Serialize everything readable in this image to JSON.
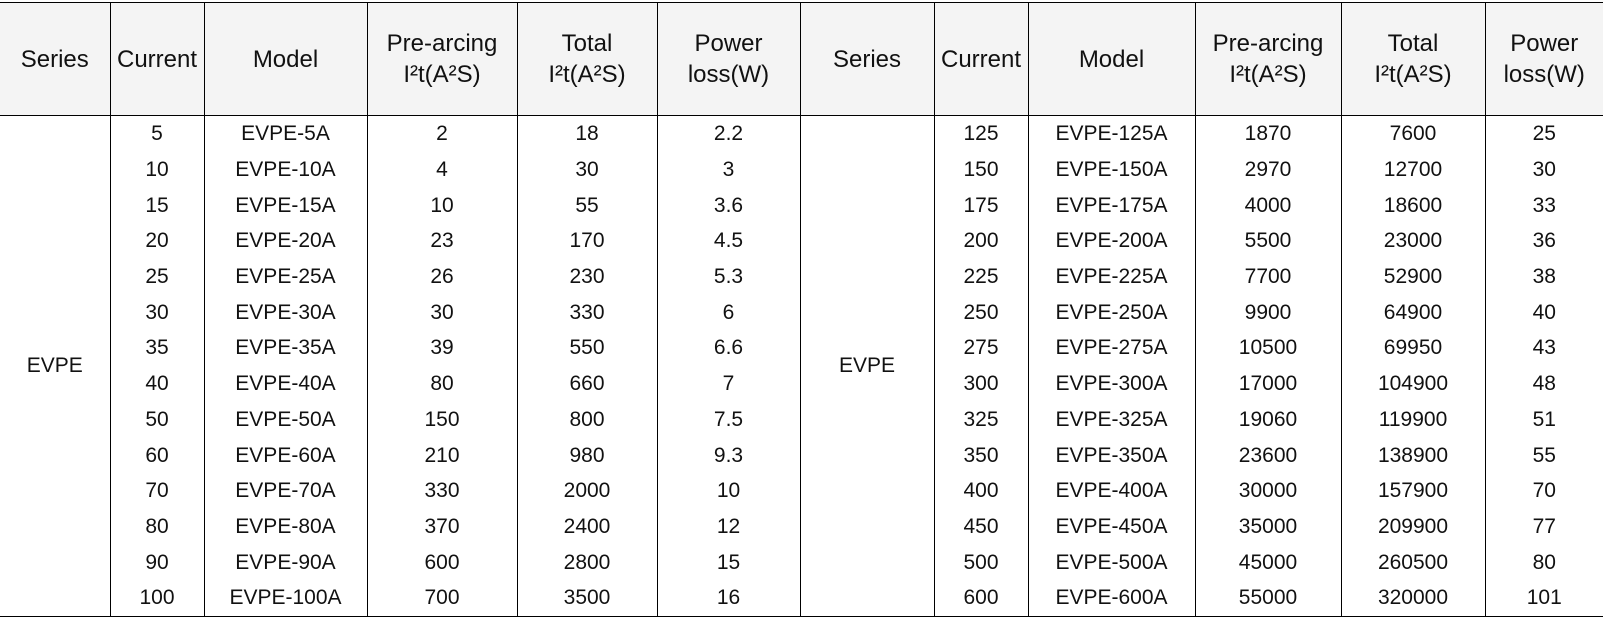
{
  "headers": [
    {
      "line1": "Series",
      "line2": ""
    },
    {
      "line1": "Current",
      "line2": ""
    },
    {
      "line1": "Model",
      "line2": ""
    },
    {
      "line1": "Pre-arcing",
      "line2": "I²t(A²S)"
    },
    {
      "line1": "Total",
      "line2": "I²t(A²S)"
    },
    {
      "line1": "Power",
      "line2": "loss(W)"
    },
    {
      "line1": "Series",
      "line2": ""
    },
    {
      "line1": "Current",
      "line2": ""
    },
    {
      "line1": "Model",
      "line2": ""
    },
    {
      "line1": "Pre-arcing",
      "line2": "I²t(A²S)"
    },
    {
      "line1": "Total",
      "line2": "I²t(A²S)"
    },
    {
      "line1": "Power",
      "line2": "loss(W)"
    }
  ],
  "left": {
    "series": "EVPE",
    "rows": [
      [
        "5",
        "EVPE-5A",
        "2",
        "18",
        "2.2"
      ],
      [
        "10",
        "EVPE-10A",
        "4",
        "30",
        "3"
      ],
      [
        "15",
        "EVPE-15A",
        "10",
        "55",
        "3.6"
      ],
      [
        "20",
        "EVPE-20A",
        "23",
        "170",
        "4.5"
      ],
      [
        "25",
        "EVPE-25A",
        "26",
        "230",
        "5.3"
      ],
      [
        "30",
        "EVPE-30A",
        "30",
        "330",
        "6"
      ],
      [
        "35",
        "EVPE-35A",
        "39",
        "550",
        "6.6"
      ],
      [
        "40",
        "EVPE-40A",
        "80",
        "660",
        "7"
      ],
      [
        "50",
        "EVPE-50A",
        "150",
        "800",
        "7.5"
      ],
      [
        "60",
        "EVPE-60A",
        "210",
        "980",
        "9.3"
      ],
      [
        "70",
        "EVPE-70A",
        "330",
        "2000",
        "10"
      ],
      [
        "80",
        "EVPE-80A",
        "370",
        "2400",
        "12"
      ],
      [
        "90",
        "EVPE-90A",
        "600",
        "2800",
        "15"
      ],
      [
        "100",
        "EVPE-100A",
        "700",
        "3500",
        "16"
      ]
    ]
  },
  "right": {
    "series": "EVPE",
    "rows": [
      [
        "125",
        "EVPE-125A",
        "1870",
        "7600",
        "25"
      ],
      [
        "150",
        "EVPE-150A",
        "2970",
        "12700",
        "30"
      ],
      [
        "175",
        "EVPE-175A",
        "4000",
        "18600",
        "33"
      ],
      [
        "200",
        "EVPE-200A",
        "5500",
        "23000",
        "36"
      ],
      [
        "225",
        "EVPE-225A",
        "7700",
        "52900",
        "38"
      ],
      [
        "250",
        "EVPE-250A",
        "9900",
        "64900",
        "40"
      ],
      [
        "275",
        "EVPE-275A",
        "10500",
        "69950",
        "43"
      ],
      [
        "300",
        "EVPE-300A",
        "17000",
        "104900",
        "48"
      ],
      [
        "325",
        "EVPE-325A",
        "19060",
        "119900",
        "51"
      ],
      [
        "350",
        "EVPE-350A",
        "23600",
        "138900",
        "55"
      ],
      [
        "400",
        "EVPE-400A",
        "30000",
        "157900",
        "70"
      ],
      [
        "450",
        "EVPE-450A",
        "35000",
        "209900",
        "77"
      ],
      [
        "500",
        "EVPE-500A",
        "45000",
        "260500",
        "80"
      ],
      [
        "600",
        "EVPE-600A",
        "55000",
        "320000",
        "101"
      ]
    ]
  }
}
